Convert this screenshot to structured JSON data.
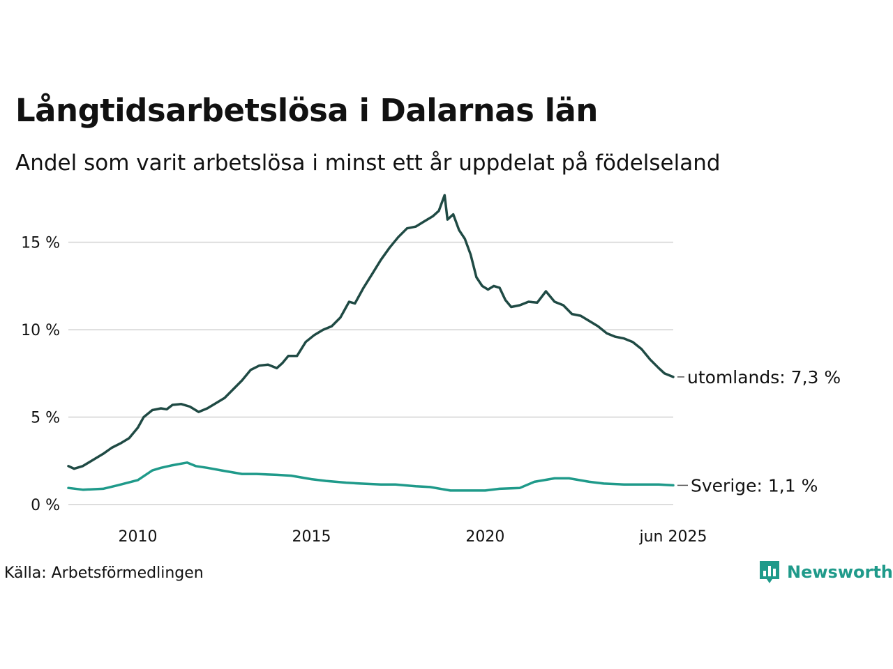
{
  "title": "Långtidsarbetslösa i Dalarnas län",
  "subtitle": "Andel som varit arbetslösa i minst ett år uppdelat på födelseland",
  "source": "Källa: Arbetsförmedlingen",
  "logo": {
    "text": "Newsworthy",
    "icon": "newsworthy-chart-icon"
  },
  "colors": {
    "utomlands": "#1f4a44",
    "sverige": "#1f9a8a",
    "grid": "#dddddd",
    "text": "#111111"
  },
  "chart_data": {
    "type": "line",
    "title": "Långtidsarbetslösa i Dalarnas län",
    "subtitle": "Andel som varit arbetslösa i minst ett år uppdelat på födelseland",
    "ylim": [
      0,
      17.7
    ],
    "xlim": [
      "2008-01",
      "2025-06"
    ],
    "y_ticks": [
      0,
      5,
      10,
      15
    ],
    "y_tick_labels": [
      "0 %",
      "5 %",
      "10 %",
      "15 %"
    ],
    "x_ticks": [
      "2010-01",
      "2015-01",
      "2020-01",
      "2025-06"
    ],
    "x_tick_labels": [
      "2010",
      "2015",
      "2020",
      "jun 2025"
    ],
    "grid": true,
    "series": [
      {
        "name": "utomlands",
        "end_label": "utomlands: 7,3 %",
        "points": [
          [
            "2008-01",
            2.2
          ],
          [
            "2008-03",
            2.05
          ],
          [
            "2008-06",
            2.2
          ],
          [
            "2008-09",
            2.5
          ],
          [
            "2009-01",
            2.9
          ],
          [
            "2009-04",
            3.25
          ],
          [
            "2009-07",
            3.5
          ],
          [
            "2009-10",
            3.8
          ],
          [
            "2010-01",
            4.4
          ],
          [
            "2010-03",
            5.0
          ],
          [
            "2010-06",
            5.4
          ],
          [
            "2010-09",
            5.5
          ],
          [
            "2010-11",
            5.45
          ],
          [
            "2011-01",
            5.7
          ],
          [
            "2011-04",
            5.75
          ],
          [
            "2011-07",
            5.6
          ],
          [
            "2011-10",
            5.3
          ],
          [
            "2012-01",
            5.5
          ],
          [
            "2012-04",
            5.8
          ],
          [
            "2012-07",
            6.1
          ],
          [
            "2012-10",
            6.6
          ],
          [
            "2013-01",
            7.1
          ],
          [
            "2013-04",
            7.7
          ],
          [
            "2013-07",
            7.95
          ],
          [
            "2013-10",
            8.0
          ],
          [
            "2014-01",
            7.8
          ],
          [
            "2014-03",
            8.1
          ],
          [
            "2014-05",
            8.5
          ],
          [
            "2014-08",
            8.5
          ],
          [
            "2014-11",
            9.3
          ],
          [
            "2015-02",
            9.7
          ],
          [
            "2015-05",
            10.0
          ],
          [
            "2015-08",
            10.2
          ],
          [
            "2015-11",
            10.7
          ],
          [
            "2016-02",
            11.6
          ],
          [
            "2016-04",
            11.5
          ],
          [
            "2016-07",
            12.4
          ],
          [
            "2016-10",
            13.2
          ],
          [
            "2017-01",
            14.0
          ],
          [
            "2017-04",
            14.7
          ],
          [
            "2017-07",
            15.3
          ],
          [
            "2017-10",
            15.8
          ],
          [
            "2018-01",
            15.9
          ],
          [
            "2018-04",
            16.2
          ],
          [
            "2018-07",
            16.5
          ],
          [
            "2018-09",
            16.8
          ],
          [
            "2018-11",
            17.7
          ],
          [
            "2018-12",
            16.3
          ],
          [
            "2019-02",
            16.6
          ],
          [
            "2019-04",
            15.7
          ],
          [
            "2019-06",
            15.2
          ],
          [
            "2019-08",
            14.3
          ],
          [
            "2019-10",
            13.0
          ],
          [
            "2019-12",
            12.5
          ],
          [
            "2020-02",
            12.3
          ],
          [
            "2020-04",
            12.5
          ],
          [
            "2020-06",
            12.4
          ],
          [
            "2020-08",
            11.7
          ],
          [
            "2020-10",
            11.3
          ],
          [
            "2021-01",
            11.4
          ],
          [
            "2021-04",
            11.6
          ],
          [
            "2021-07",
            11.55
          ],
          [
            "2021-10",
            12.2
          ],
          [
            "2022-01",
            11.6
          ],
          [
            "2022-04",
            11.4
          ],
          [
            "2022-07",
            10.9
          ],
          [
            "2022-10",
            10.8
          ],
          [
            "2023-01",
            10.5
          ],
          [
            "2023-04",
            10.2
          ],
          [
            "2023-07",
            9.8
          ],
          [
            "2023-10",
            9.6
          ],
          [
            "2024-01",
            9.5
          ],
          [
            "2024-04",
            9.3
          ],
          [
            "2024-07",
            8.9
          ],
          [
            "2024-10",
            8.3
          ],
          [
            "2025-01",
            7.8
          ],
          [
            "2025-03",
            7.5
          ],
          [
            "2025-06",
            7.3
          ]
        ]
      },
      {
        "name": "Sverige",
        "end_label": "Sverige: 1,1 %",
        "points": [
          [
            "2008-01",
            0.95
          ],
          [
            "2008-06",
            0.85
          ],
          [
            "2009-01",
            0.9
          ],
          [
            "2009-06",
            1.1
          ],
          [
            "2010-01",
            1.4
          ],
          [
            "2010-06",
            1.95
          ],
          [
            "2010-09",
            2.1
          ],
          [
            "2011-01",
            2.25
          ],
          [
            "2011-06",
            2.4
          ],
          [
            "2011-09",
            2.2
          ],
          [
            "2012-01",
            2.1
          ],
          [
            "2012-06",
            1.95
          ],
          [
            "2013-01",
            1.75
          ],
          [
            "2013-06",
            1.75
          ],
          [
            "2014-01",
            1.7
          ],
          [
            "2014-06",
            1.65
          ],
          [
            "2015-01",
            1.45
          ],
          [
            "2015-06",
            1.35
          ],
          [
            "2016-01",
            1.25
          ],
          [
            "2016-06",
            1.2
          ],
          [
            "2017-01",
            1.15
          ],
          [
            "2017-06",
            1.15
          ],
          [
            "2018-01",
            1.05
          ],
          [
            "2018-06",
            1.0
          ],
          [
            "2019-01",
            0.8
          ],
          [
            "2019-06",
            0.8
          ],
          [
            "2020-01",
            0.8
          ],
          [
            "2020-06",
            0.9
          ],
          [
            "2021-01",
            0.95
          ],
          [
            "2021-06",
            1.3
          ],
          [
            "2022-01",
            1.5
          ],
          [
            "2022-06",
            1.5
          ],
          [
            "2023-01",
            1.3
          ],
          [
            "2023-06",
            1.2
          ],
          [
            "2024-01",
            1.15
          ],
          [
            "2024-06",
            1.15
          ],
          [
            "2025-01",
            1.15
          ],
          [
            "2025-06",
            1.1
          ]
        ]
      }
    ]
  }
}
